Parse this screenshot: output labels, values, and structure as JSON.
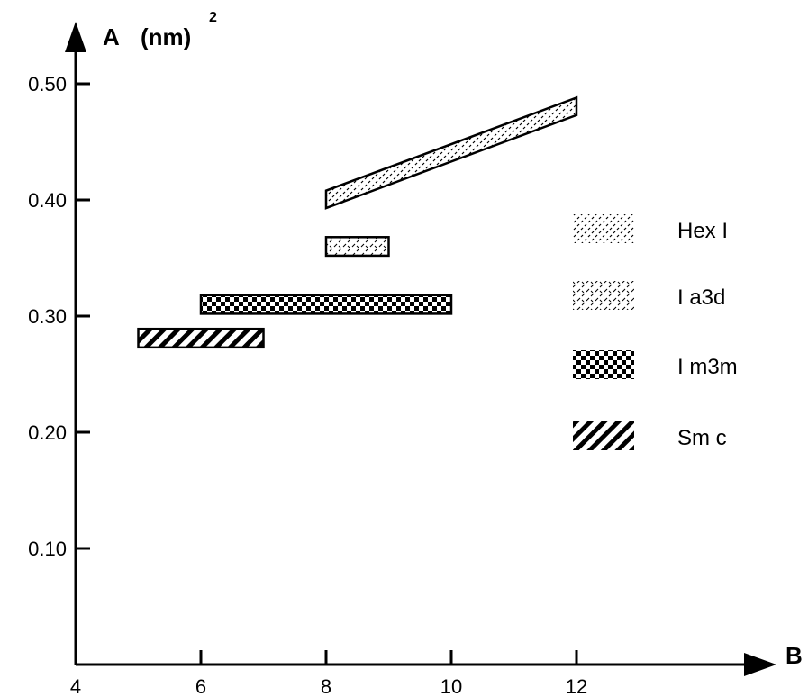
{
  "chart_data": {
    "type": "bar",
    "orientation": "horizontal-range",
    "title": "",
    "xlabel": "B",
    "ylabel": "A",
    "ylabel_unit": "(nm)",
    "ylabel_unit_exponent": "2",
    "xlim": [
      4,
      13.3
    ],
    "ylim": [
      0,
      0.55
    ],
    "xticks": [
      4,
      6,
      8,
      10,
      12
    ],
    "xtick_labels": [
      "4",
      "6",
      "8",
      "10",
      "12"
    ],
    "yticks": [
      0.1,
      0.2,
      0.3,
      0.4,
      0.5
    ],
    "ytick_labels": [
      "0.10",
      "0.20",
      "0.30",
      "0.40",
      "0.50"
    ],
    "grid": false,
    "legend_position": "right",
    "series": [
      {
        "name": "Hex I",
        "pattern": "dots",
        "x_start": 8,
        "x_end": 12,
        "y_low_start": 0.393,
        "y_high_start": 0.408,
        "y_low_end": 0.473,
        "y_high_end": 0.488
      },
      {
        "name": "I a3d",
        "pattern": "dashes",
        "x_start": 8,
        "x_end": 9,
        "y_low": 0.352,
        "y_high": 0.368
      },
      {
        "name": "I m3m",
        "pattern": "checker",
        "x_start": 6,
        "x_end": 10,
        "y_low": 0.302,
        "y_high": 0.318
      },
      {
        "name": "Sm c",
        "pattern": "hatch",
        "x_start": 5,
        "x_end": 7,
        "y_low": 0.273,
        "y_high": 0.289
      }
    ],
    "legend": [
      {
        "name": "Hex I",
        "pattern": "dots"
      },
      {
        "name": "I a3d",
        "pattern": "dashes"
      },
      {
        "name": "I m3m",
        "pattern": "checker"
      },
      {
        "name": "Sm c",
        "pattern": "hatch"
      }
    ]
  }
}
